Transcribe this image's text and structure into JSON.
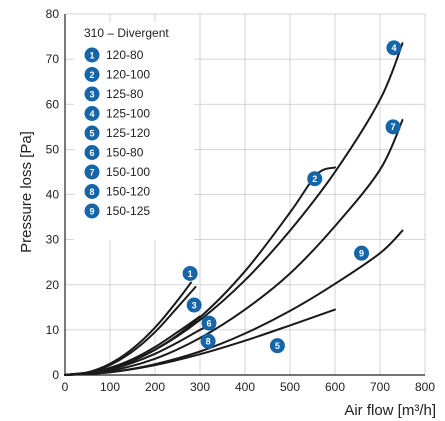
{
  "chart_data": {
    "type": "line",
    "title": "",
    "xlabel": "Air flow [m³/h]",
    "ylabel": "Pressure loss [Pa]",
    "xlim": [
      0,
      800
    ],
    "ylim": [
      0,
      80
    ],
    "xticks": [
      0,
      100,
      200,
      300,
      400,
      500,
      600,
      700,
      800
    ],
    "yticks": [
      0,
      10,
      20,
      30,
      40,
      50,
      60,
      70,
      80
    ],
    "grid": true,
    "legend_position": "top-left",
    "legend_title": "310 – Divergent",
    "badge_color": "#1565a8",
    "line_color": "#1a1a1a",
    "series": [
      {
        "marker": "1",
        "name": "120-80",
        "x": [
          0,
          50,
          100,
          150,
          200,
          250,
          280
        ],
        "y": [
          0,
          0.6,
          2.5,
          5.8,
          10.5,
          16.5,
          20.5
        ],
        "label_at": [
          278,
          22.5
        ]
      },
      {
        "marker": "2",
        "name": "120-100",
        "x": [
          0,
          100,
          200,
          300,
          400,
          500,
          560,
          600
        ],
        "y": [
          0,
          1.4,
          5.6,
          12.8,
          23,
          36,
          44.5,
          46
        ],
        "label_at": [
          555,
          43.5
        ]
      },
      {
        "marker": "3",
        "name": "125-80",
        "x": [
          0,
          50,
          100,
          150,
          200,
          250,
          290
        ],
        "y": [
          0,
          0.5,
          2.2,
          5.2,
          9.5,
          15,
          19.5
        ],
        "label_at": [
          287,
          15.5
        ]
      },
      {
        "marker": "4",
        "name": "125-100",
        "x": [
          0,
          100,
          200,
          300,
          400,
          500,
          600,
          700,
          750
        ],
        "y": [
          0,
          1.4,
          5.6,
          12.2,
          21,
          32,
          45,
          61,
          73.5
        ],
        "label_at": [
          731,
          72.5
        ]
      },
      {
        "marker": "5",
        "name": "125-120",
        "x": [
          0,
          100,
          200,
          300,
          400,
          500,
          600
        ],
        "y": [
          0,
          0.6,
          2.2,
          4.6,
          7.6,
          11,
          14.5
        ],
        "label_at": [
          472,
          6.5
        ]
      },
      {
        "marker": "6",
        "name": "150-80",
        "x": [
          0,
          50,
          100,
          150,
          200,
          250,
          300
        ],
        "y": [
          0,
          0.4,
          1.6,
          3.5,
          6.2,
          9.5,
          13
        ],
        "label_at": [
          320,
          11.5
        ]
      },
      {
        "marker": "7",
        "name": "150-100",
        "x": [
          0,
          100,
          200,
          300,
          400,
          500,
          600,
          700,
          750
        ],
        "y": [
          0,
          0.9,
          3.6,
          8.2,
          14.5,
          22.5,
          33,
          45.5,
          56.5
        ],
        "label_at": [
          729,
          55
        ]
      },
      {
        "marker": "8",
        "name": "150-120",
        "x": [
          0,
          50,
          100,
          150,
          200,
          250,
          300,
          330
        ],
        "y": [
          0,
          0.3,
          1.2,
          2.7,
          4.7,
          7.2,
          10,
          11.5
        ],
        "label_at": [
          318,
          7.5
        ]
      },
      {
        "marker": "9",
        "name": "150-125",
        "x": [
          0,
          100,
          200,
          300,
          400,
          500,
          600,
          700,
          750
        ],
        "y": [
          0,
          0.6,
          2.4,
          5.2,
          9.2,
          14.2,
          20.2,
          27,
          32
        ],
        "label_at": [
          659,
          27
        ]
      }
    ]
  }
}
